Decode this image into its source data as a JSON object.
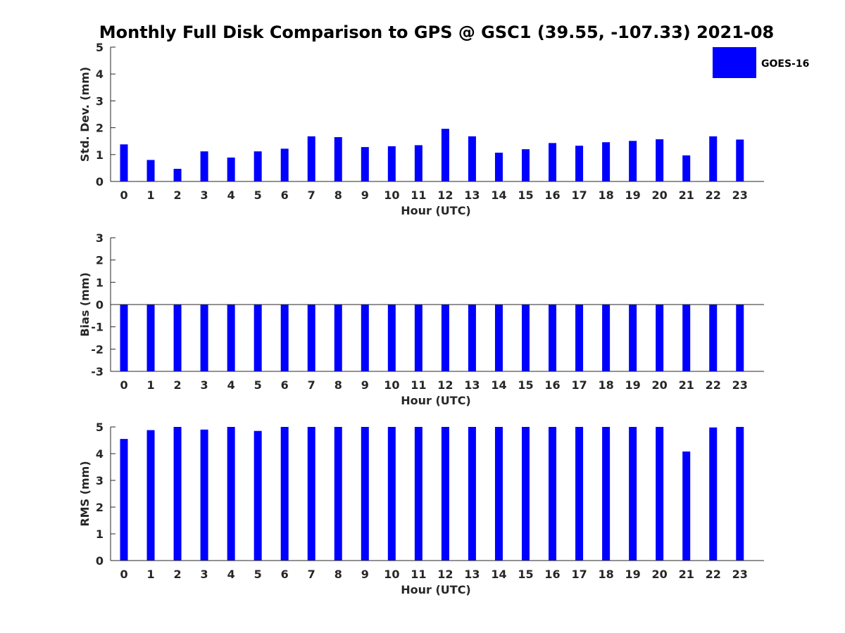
{
  "title": "Monthly Full Disk Comparison to GPS @ GSC1 (39.55, -107.33) 2021-08",
  "legend": {
    "label": "GOES-16",
    "color": "#0000ff"
  },
  "chart_data": [
    {
      "type": "bar",
      "id": "stddev",
      "ylabel": "Std. Dev. (mm)",
      "xlabel": "Hour (UTC)",
      "ylim": [
        0,
        5
      ],
      "yticks": [
        0,
        1,
        2,
        3,
        4,
        5
      ],
      "categories": [
        "0",
        "1",
        "2",
        "3",
        "4",
        "5",
        "6",
        "7",
        "8",
        "9",
        "10",
        "11",
        "12",
        "13",
        "14",
        "15",
        "16",
        "17",
        "18",
        "19",
        "20",
        "21",
        "22",
        "23"
      ],
      "series": [
        {
          "name": "GOES-16",
          "color": "#0000ff",
          "values": [
            1.38,
            0.8,
            0.47,
            1.12,
            0.89,
            1.12,
            1.22,
            1.68,
            1.65,
            1.28,
            1.31,
            1.35,
            1.96,
            1.68,
            1.07,
            1.2,
            1.43,
            1.33,
            1.46,
            1.51,
            1.57,
            0.97,
            1.68,
            1.56
          ]
        }
      ]
    },
    {
      "type": "bar",
      "id": "bias",
      "ylabel": "Bias (mm)",
      "xlabel": "Hour (UTC)",
      "ylim": [
        -3,
        3
      ],
      "yticks": [
        -3,
        -2,
        -1,
        0,
        1,
        2,
        3
      ],
      "categories": [
        "0",
        "1",
        "2",
        "3",
        "4",
        "5",
        "6",
        "7",
        "8",
        "9",
        "10",
        "11",
        "12",
        "13",
        "14",
        "15",
        "16",
        "17",
        "18",
        "19",
        "20",
        "21",
        "22",
        "23"
      ],
      "series": [
        {
          "name": "GOES-16",
          "color": "#0000ff",
          "values": [
            -3,
            -3,
            -3,
            -3,
            -3,
            -3,
            -3,
            -3,
            -3,
            -3,
            -3,
            -3,
            -3,
            -3,
            -3,
            -3,
            -3,
            -3,
            -3,
            -3,
            -3,
            -3,
            -3,
            -3
          ]
        }
      ]
    },
    {
      "type": "bar",
      "id": "rms",
      "ylabel": "RMS (mm)",
      "xlabel": "Hour (UTC)",
      "ylim": [
        0,
        5
      ],
      "yticks": [
        0,
        1,
        2,
        3,
        4,
        5
      ],
      "categories": [
        "0",
        "1",
        "2",
        "3",
        "4",
        "5",
        "6",
        "7",
        "8",
        "9",
        "10",
        "11",
        "12",
        "13",
        "14",
        "15",
        "16",
        "17",
        "18",
        "19",
        "20",
        "21",
        "22",
        "23"
      ],
      "series": [
        {
          "name": "GOES-16",
          "color": "#0000ff",
          "values": [
            4.55,
            4.88,
            5,
            4.9,
            5,
            4.85,
            5,
            5,
            5,
            5,
            5,
            5,
            5,
            5,
            5,
            5,
            5,
            5,
            5,
            5,
            5,
            4.08,
            4.98,
            5
          ]
        }
      ]
    }
  ]
}
